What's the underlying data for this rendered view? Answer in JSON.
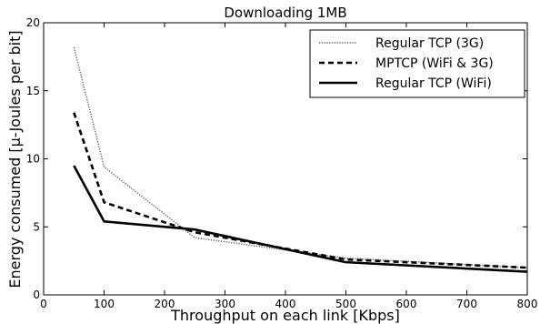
{
  "chart_data": {
    "type": "line",
    "title": "Downloading 1MB",
    "xlabel": "Throughput on each link [Kbps]",
    "ylabel": "Energy consumed [µ-Joules per bit]",
    "xlim": [
      0,
      800
    ],
    "ylim": [
      0,
      20
    ],
    "xticks": [
      0,
      100,
      200,
      300,
      400,
      500,
      600,
      700,
      800
    ],
    "yticks": [
      0,
      5,
      10,
      15,
      20
    ],
    "grid": false,
    "legend_position": "top-right",
    "series": [
      {
        "name": "Regular TCP (3G)",
        "style": "dotted",
        "color": "#555555",
        "x": [
          50,
          100,
          250,
          500,
          800
        ],
        "y": [
          18.2,
          9.4,
          4.2,
          2.7,
          2.0
        ]
      },
      {
        "name": "MPTCP (WiFi & 3G)",
        "style": "dashed",
        "color": "#000000",
        "x": [
          50,
          100,
          250,
          500,
          800
        ],
        "y": [
          13.4,
          6.8,
          4.6,
          2.6,
          2.0
        ]
      },
      {
        "name": "Regular TCP (WiFi)",
        "style": "solid",
        "color": "#000000",
        "x": [
          50,
          100,
          250,
          500,
          800
        ],
        "y": [
          9.5,
          5.4,
          4.8,
          2.4,
          1.7
        ]
      }
    ]
  }
}
